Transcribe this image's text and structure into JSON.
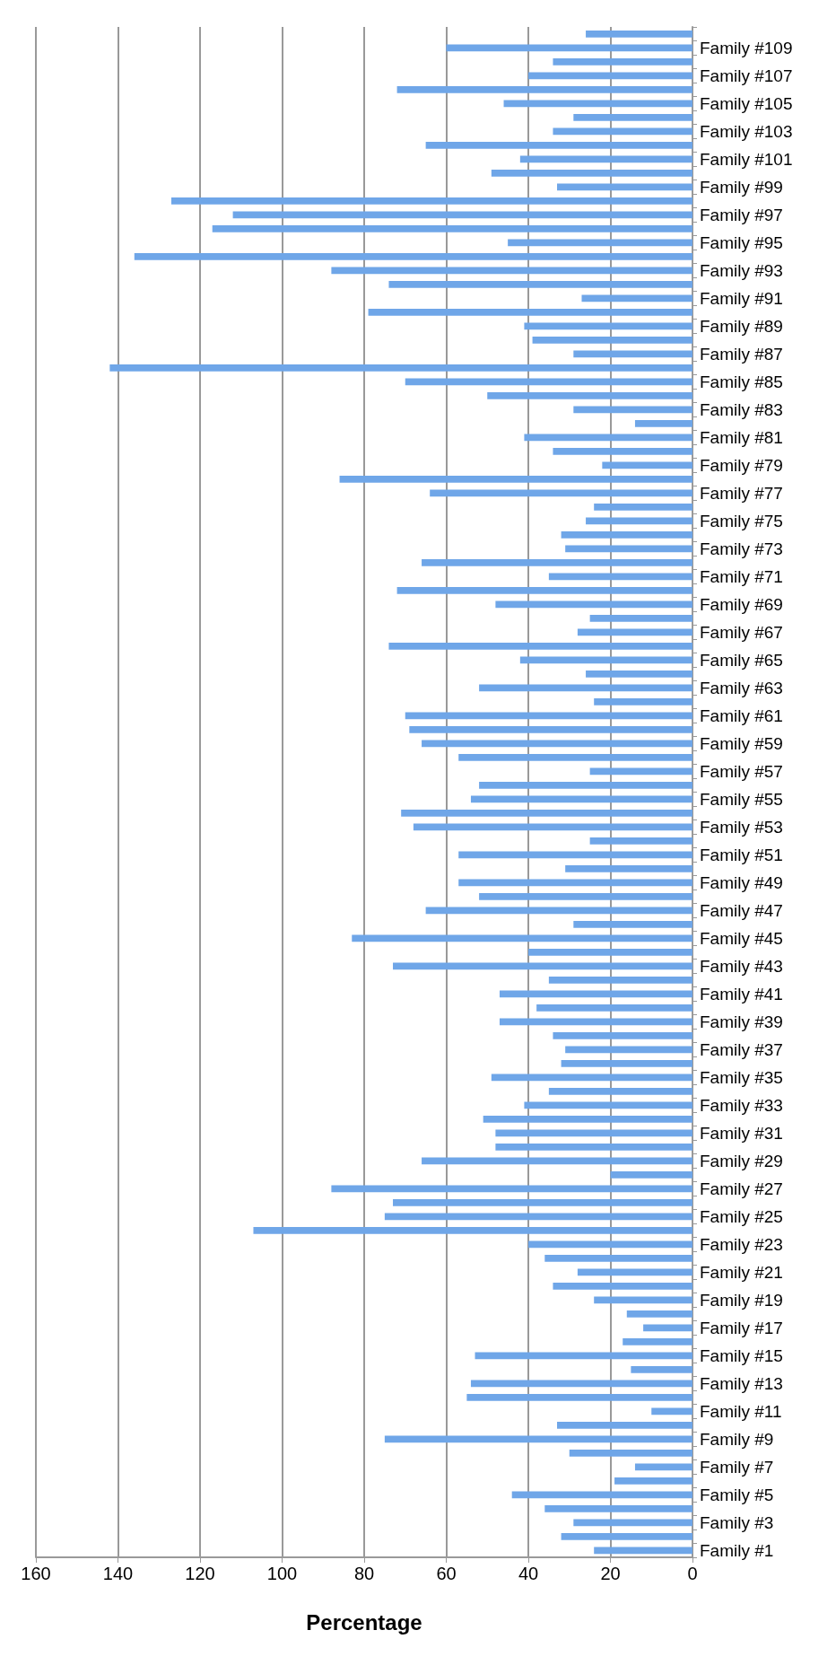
{
  "chart_data": {
    "type": "bar",
    "orientation": "horizontal",
    "xlabel": "Percentage",
    "categories": [
      null,
      "Family #109",
      null,
      "Family #107",
      null,
      "Family #105",
      null,
      "Family #103",
      null,
      "Family #101",
      null,
      "Family #99",
      null,
      "Family #97",
      null,
      "Family #95",
      null,
      "Family #93",
      null,
      "Family #91",
      null,
      "Family #89",
      null,
      "Family #87",
      null,
      "Family #85",
      null,
      "Family #83",
      null,
      "Family #81",
      null,
      "Family #79",
      null,
      "Family #77",
      null,
      "Family #75",
      null,
      "Family #73",
      null,
      "Family #71",
      null,
      "Family #69",
      null,
      "Family #67",
      null,
      "Family #65",
      null,
      "Family #63",
      null,
      "Family #61",
      null,
      "Family #59",
      null,
      "Family #57",
      null,
      "Family #55",
      null,
      "Family #53",
      null,
      "Family #51",
      null,
      "Family #49",
      null,
      "Family #47",
      null,
      "Family #45",
      null,
      "Family #43",
      null,
      "Family #41",
      null,
      "Family #39",
      null,
      "Family #37",
      null,
      "Family #35",
      null,
      "Family #33",
      null,
      "Family #31",
      null,
      "Family #29",
      null,
      "Family #27",
      null,
      "Family #25",
      null,
      "Family #23",
      null,
      "Family #21",
      null,
      "Family #19",
      null,
      "Family #17",
      null,
      "Family #15",
      null,
      "Family #13",
      null,
      "Family #11",
      null,
      "Family #9",
      null,
      "Family #7",
      null,
      "Family #5",
      null,
      "Family #3",
      null,
      "Family #1"
    ],
    "values": [
      26,
      60,
      34,
      40,
      72,
      46,
      29,
      34,
      65,
      42,
      49,
      33,
      127,
      112,
      117,
      45,
      136,
      88,
      74,
      27,
      79,
      41,
      39,
      29,
      142,
      70,
      50,
      29,
      14,
      41,
      34,
      22,
      86,
      64,
      24,
      26,
      32,
      31,
      66,
      35,
      72,
      48,
      25,
      28,
      74,
      42,
      26,
      52,
      24,
      70,
      69,
      66,
      57,
      25,
      52,
      54,
      71,
      68,
      25,
      57,
      31,
      57,
      52,
      65,
      29,
      83,
      40,
      73,
      35,
      47,
      38,
      47,
      34,
      31,
      32,
      49,
      35,
      41,
      51,
      48,
      48,
      66,
      20,
      88,
      73,
      75,
      107,
      40,
      36,
      28,
      34,
      24,
      16,
      12,
      17,
      53,
      15,
      54,
      55,
      10,
      33,
      75,
      30,
      14,
      19,
      44,
      36,
      29,
      32,
      24
    ],
    "color": "#6fa6e8",
    "xlim": [
      160,
      0
    ],
    "xticks": [
      0,
      20,
      40,
      60,
      80,
      100,
      120,
      140,
      160
    ],
    "grid": "x"
  }
}
